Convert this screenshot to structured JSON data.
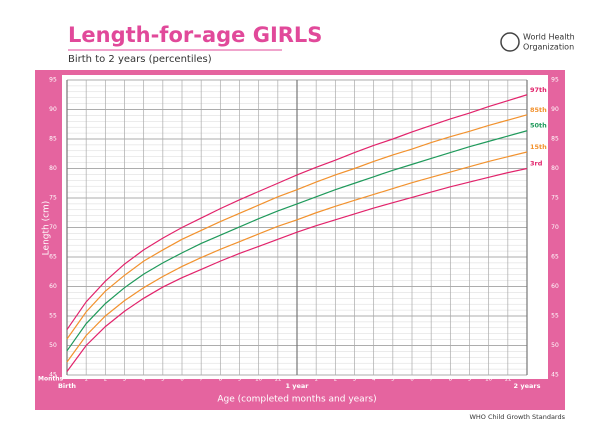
{
  "header": {
    "title": "Length-for-age GIRLS",
    "subtitle": "Birth to 2 years (percentiles)",
    "org": [
      "World Health",
      "Organization"
    ]
  },
  "chart_data": {
    "type": "line",
    "y_label": "Length (cm)",
    "x_label": "Age (completed months and years)",
    "x_unit_label": "Months",
    "x": [
      0,
      1,
      2,
      3,
      4,
      5,
      6,
      7,
      8,
      9,
      10,
      11,
      12,
      13,
      14,
      15,
      16,
      17,
      18,
      19,
      20,
      21,
      22,
      23,
      24
    ],
    "xlim": [
      0,
      24
    ],
    "xticks": [
      {
        "value": 0,
        "label": "Birth"
      },
      1,
      2,
      3,
      4,
      5,
      6,
      7,
      8,
      9,
      10,
      11,
      {
        "value": 12,
        "label": "1 year"
      },
      {
        "value": 13,
        "label": "1"
      },
      {
        "value": 14,
        "label": "2"
      },
      {
        "value": 15,
        "label": "3"
      },
      {
        "value": 16,
        "label": "4"
      },
      {
        "value": 17,
        "label": "5"
      },
      {
        "value": 18,
        "label": "6"
      },
      {
        "value": 19,
        "label": "7"
      },
      {
        "value": 20,
        "label": "8"
      },
      {
        "value": 21,
        "label": "9"
      },
      {
        "value": 22,
        "label": "10"
      },
      {
        "value": 23,
        "label": "11"
      },
      {
        "value": 24,
        "label": "2 years"
      }
    ],
    "ylim": [
      45,
      95
    ],
    "yticks": [
      45,
      50,
      55,
      60,
      65,
      70,
      75,
      80,
      85,
      90,
      95
    ],
    "grid": true,
    "minor_grid": true,
    "series": [
      {
        "name": "97th",
        "color": "#e2236b",
        "values": [
          52.7,
          57.4,
          60.9,
          63.8,
          66.2,
          68.2,
          70.0,
          71.6,
          73.2,
          74.7,
          76.1,
          77.5,
          78.9,
          80.2,
          81.4,
          82.7,
          83.9,
          85.0,
          86.2,
          87.3,
          88.4,
          89.4,
          90.5,
          91.5,
          92.5
        ]
      },
      {
        "name": "85th",
        "color": "#f2922e",
        "values": [
          51.1,
          55.7,
          59.2,
          61.9,
          64.3,
          66.2,
          68.0,
          69.5,
          71.0,
          72.4,
          73.8,
          75.2,
          76.4,
          77.7,
          78.9,
          80.0,
          81.2,
          82.3,
          83.3,
          84.4,
          85.4,
          86.3,
          87.3,
          88.2,
          89.1
        ]
      },
      {
        "name": "50th",
        "color": "#1f9a5b",
        "values": [
          49.1,
          53.7,
          57.1,
          59.8,
          62.1,
          64.0,
          65.7,
          67.3,
          68.7,
          70.1,
          71.5,
          72.8,
          74.0,
          75.2,
          76.4,
          77.5,
          78.6,
          79.7,
          80.7,
          81.7,
          82.7,
          83.7,
          84.6,
          85.5,
          86.4
        ]
      },
      {
        "name": "15th",
        "color": "#f2922e",
        "values": [
          47.2,
          51.7,
          55.0,
          57.6,
          59.8,
          61.7,
          63.4,
          64.9,
          66.3,
          67.6,
          68.9,
          70.2,
          71.3,
          72.5,
          73.6,
          74.6,
          75.6,
          76.6,
          77.6,
          78.5,
          79.4,
          80.3,
          81.2,
          82.0,
          82.8
        ]
      },
      {
        "name": "3rd",
        "color": "#e2236b",
        "values": [
          45.6,
          50.0,
          53.2,
          55.8,
          58.0,
          59.9,
          61.5,
          62.9,
          64.3,
          65.6,
          66.8,
          68.0,
          69.2,
          70.3,
          71.3,
          72.3,
          73.3,
          74.2,
          75.1,
          76.0,
          76.9,
          77.7,
          78.5,
          79.3,
          80.0
        ]
      }
    ]
  },
  "footer": "WHO Child Growth Standards"
}
